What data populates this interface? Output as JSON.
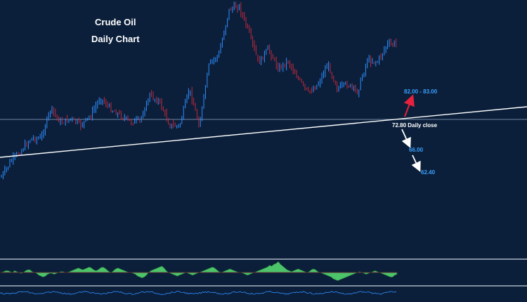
{
  "header": {
    "title": "Crude Oil",
    "subtitle": "Daily Chart"
  },
  "annotations": {
    "target_up": "82.00 - 83.00",
    "close": "72.80 Daily close",
    "target_down_1": "66.00",
    "target_down_2": "62.40"
  },
  "colors": {
    "background": "#0b1f3a",
    "bull_candle": "#2f8fff",
    "bear_candle": "#c0283c",
    "trendline": "#ffffff",
    "horizontal_line": "#6f87a6",
    "macd_fill": "#4cc46a",
    "arrow_up": "#e8213c",
    "arrow_down": "#ffffff",
    "target_text": "#3aa0ff"
  },
  "chart_data": {
    "type": "candlestick",
    "title": "Crude Oil",
    "subtitle": "Daily Chart",
    "y_axis": "hidden",
    "x_axis": "hidden",
    "grid": false,
    "levels": {
      "daily_close": 72.8,
      "upside_target_range": [
        82.0,
        83.0
      ],
      "downside_targets": [
        66.0,
        62.4
      ]
    },
    "series": [
      {
        "name": "",
        "kind": "price_path_index",
        "values": [
          10,
          25,
          34,
          45,
          45,
          72,
          59,
          63,
          57,
          65,
          82,
          72,
          66,
          60,
          61,
          84,
          78,
          57,
          56,
          90,
          56,
          112,
          121,
          161,
          165,
          141,
          113,
          126,
          108,
          115,
          99,
          86,
          94,
          112,
          90,
          94,
          87,
          116,
          114,
          130,
          130
        ]
      },
      {
        "name": "",
        "kind": "histogram_index",
        "values": [
          0,
          1,
          2,
          2,
          1,
          0,
          2,
          1,
          0,
          -1,
          0,
          2,
          3,
          3,
          1,
          0,
          -1,
          -3,
          -4,
          -5,
          -4,
          -2,
          -1,
          -1,
          -2,
          -1,
          0,
          1,
          1,
          0,
          0,
          1,
          2,
          3,
          4,
          5,
          4,
          3,
          4,
          5,
          6,
          5,
          3,
          2,
          3,
          5,
          6,
          5,
          3,
          1,
          0,
          2,
          4,
          5,
          4,
          3,
          2,
          1,
          0,
          0,
          -1,
          -2,
          -4,
          -5,
          -6,
          -5,
          -3,
          0,
          2,
          3,
          4,
          5,
          6,
          7,
          5,
          2,
          0,
          -1,
          -2,
          -3,
          -4,
          -3,
          -2,
          -1,
          0,
          -1,
          -2,
          -3,
          -2,
          -1,
          0,
          1,
          2,
          3,
          4,
          5,
          6,
          5,
          3,
          1,
          0,
          1,
          2,
          3,
          4,
          3,
          2,
          1,
          0,
          0,
          -1,
          -2,
          -3,
          -2,
          -1,
          0,
          1,
          2,
          3,
          4,
          5,
          6,
          8,
          7,
          9,
          10,
          12,
          9,
          7,
          5,
          3,
          2,
          1,
          2,
          3,
          4,
          3,
          2,
          1,
          0,
          1,
          3,
          4,
          3,
          1,
          0,
          -1,
          -2,
          -3,
          -4,
          -5,
          -7,
          -8,
          -9,
          -8,
          -7,
          -6,
          -5,
          -4,
          -3,
          -2,
          -1,
          0,
          1,
          0,
          -1,
          -2,
          -1,
          0,
          1,
          2,
          1,
          0,
          -1,
          -2,
          -3,
          -4,
          -5,
          -5,
          -3,
          -2
        ]
      }
    ]
  }
}
